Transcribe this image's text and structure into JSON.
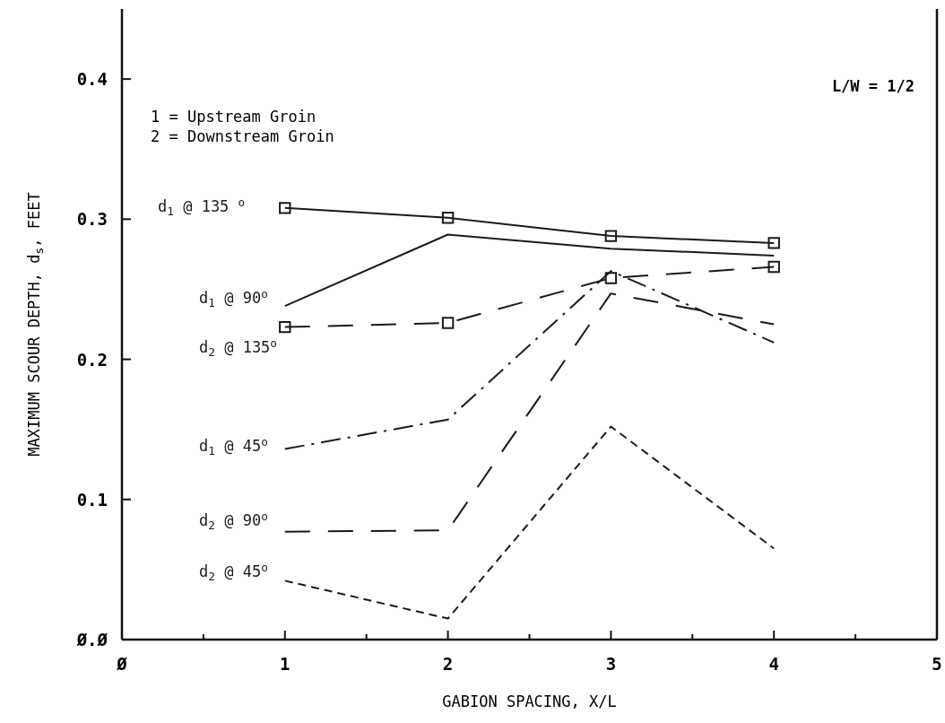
{
  "chart_data": {
    "type": "line",
    "xlabel": "GABION SPACING, X/L",
    "ylabel": "MAXIMUM SCOUR DEPTH, d$_{s}$, FEET",
    "x": [
      1,
      2,
      3,
      4
    ],
    "xlim": [
      0,
      5
    ],
    "xticks": [
      {
        "value": 0,
        "label": "Ø"
      },
      {
        "value": 0.5,
        "label": null
      },
      1,
      {
        "value": 1.5,
        "label": null
      },
      2,
      {
        "value": 2.5,
        "label": null
      },
      3,
      {
        "value": 3.5,
        "label": null
      },
      4,
      {
        "value": 4.5,
        "label": null
      },
      5
    ],
    "ylim": [
      0,
      0.45
    ],
    "yticks": [
      {
        "value": 0,
        "label": "Ø.Ø"
      },
      {
        "value": 0.1,
        "label": "0.1"
      },
      {
        "value": 0.2,
        "label": "0.2"
      },
      {
        "value": 0.3,
        "label": "0.3"
      },
      {
        "value": 0.4,
        "label": "0.4"
      }
    ],
    "grid": false,
    "series": [
      {
        "name": "d$_{1}$ @ 135 $^{o}$",
        "color": "#1a1a1a",
        "values": [
          0.308,
          0.301,
          0.288,
          0.283
        ],
        "marker": "square",
        "line_style": "solid"
      },
      {
        "name": "d$_{1}$ @ 90$^{o}$",
        "color": "#1a1a1a",
        "values": [
          0.238,
          0.289,
          0.279,
          0.274
        ],
        "marker": "none",
        "line_style": "solid"
      },
      {
        "name": "d$_{2}$ @ 135$^{o}$",
        "color": "#1a1a1a",
        "values": [
          0.223,
          0.226,
          0.258,
          0.266
        ],
        "marker": "square",
        "line_style": "dashed"
      },
      {
        "name": "d$_{1}$ @ 45$^{o}$",
        "color": "#1a1a1a",
        "values": [
          0.136,
          0.157,
          0.263,
          0.212
        ],
        "marker": "none",
        "line_style": "dashdot"
      },
      {
        "name": "d$_{2}$ @ 90$^{o}$",
        "color": "#1a1a1a",
        "values": [
          0.077,
          0.078,
          0.247,
          0.225
        ],
        "marker": "none",
        "line_style": "dashed"
      },
      {
        "name": "d$_{2}$ @ 45$^{o}$",
        "color": "#1a1a1a",
        "values": [
          0.042,
          0.015,
          0.152,
          0.065
        ],
        "marker": "none",
        "line_style": "dotted"
      }
    ],
    "annotations": [
      "1 = Upstream Groin",
      "2 = Downstream Groin",
      "L/W = 1/2"
    ]
  }
}
